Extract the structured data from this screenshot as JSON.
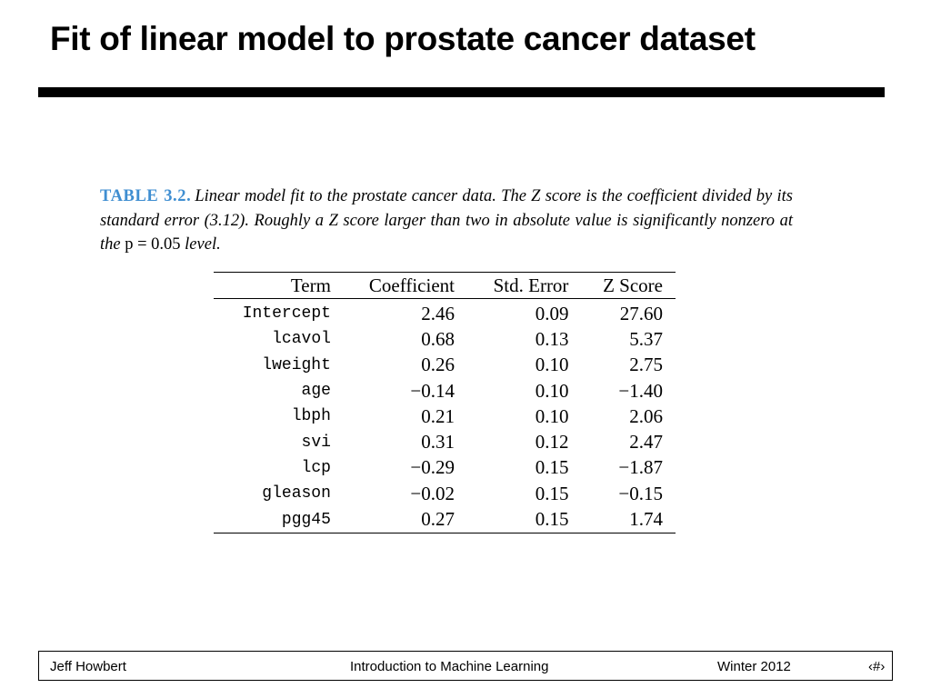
{
  "slide": {
    "title": "Fit of linear model to prostate cancer dataset"
  },
  "caption": {
    "label": "TABLE 3.2.",
    "text_part1": "Linear model fit to the prostate cancer data. The Z score is the coefficient divided by its standard error (3.12). Roughly a Z score larger than two in absolute value is significantly nonzero at the ",
    "math": "p = 0.05",
    "text_part2": " level."
  },
  "table": {
    "headers": [
      "Term",
      "Coefficient",
      "Std. Error",
      "Z Score"
    ],
    "rows": [
      [
        "Intercept",
        "2.46",
        "0.09",
        "27.60"
      ],
      [
        "lcavol",
        "0.68",
        "0.13",
        "5.37"
      ],
      [
        "lweight",
        "0.26",
        "0.10",
        "2.75"
      ],
      [
        "age",
        "−0.14",
        "0.10",
        "−1.40"
      ],
      [
        "lbph",
        "0.21",
        "0.10",
        "2.06"
      ],
      [
        "svi",
        "0.31",
        "0.12",
        "2.47"
      ],
      [
        "lcp",
        "−0.29",
        "0.15",
        "−1.87"
      ],
      [
        "gleason",
        "−0.02",
        "0.15",
        "−0.15"
      ],
      [
        "pgg45",
        "0.27",
        "0.15",
        "1.74"
      ]
    ]
  },
  "footer": {
    "author": "Jeff Howbert",
    "course": "Introduction to Machine Learning",
    "term": "Winter 2012",
    "page": "‹#›"
  },
  "colors": {
    "caption_label": "#3f8ed1",
    "title_rule": "#000000",
    "background": "#ffffff"
  }
}
